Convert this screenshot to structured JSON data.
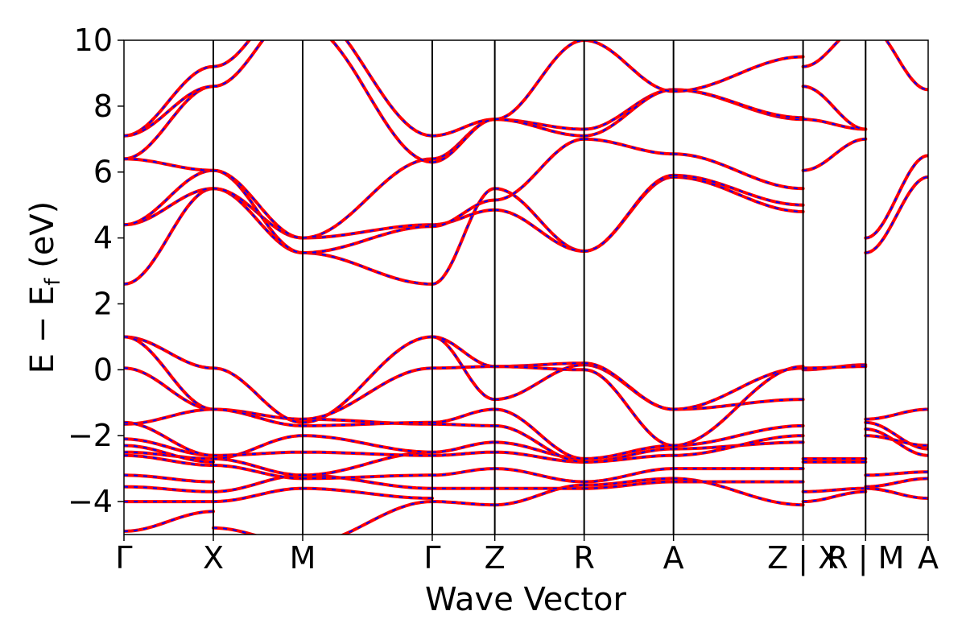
{
  "chart_data": {
    "type": "line",
    "title": "",
    "xlabel": "Wave Vector",
    "ylabel": "E − E",
    "ylabel_sub": "f",
    "ylabel_unit": " (eV)",
    "ylim": [
      -5,
      10
    ],
    "yticks": [
      {
        "value": 10,
        "label": "10"
      },
      {
        "value": 8,
        "label": "8"
      },
      {
        "value": 6,
        "label": "6"
      },
      {
        "value": 4,
        "label": "4"
      },
      {
        "value": 2,
        "label": "2"
      },
      {
        "value": 0,
        "label": "0"
      },
      {
        "value": -2,
        "label": "−2"
      },
      {
        "value": -4,
        "label": "−4"
      }
    ],
    "xlim": [
      0,
      9.0
    ],
    "kpoints": [
      {
        "x": 0.0,
        "label": "Γ"
      },
      {
        "x": 1.0,
        "label": "X"
      },
      {
        "x": 2.0,
        "label": "M"
      },
      {
        "x": 3.45,
        "label": "Γ"
      },
      {
        "x": 4.15,
        "label": "Z"
      },
      {
        "x": 5.15,
        "label": "R"
      },
      {
        "x": 6.15,
        "label": "A"
      },
      {
        "x": 7.6,
        "label": "Z | X"
      },
      {
        "x": 8.3,
        "label": "R | M"
      },
      {
        "x": 9.0,
        "label": "A"
      }
    ],
    "series": [
      {
        "color": "#ff0000",
        "style": "solid"
      },
      {
        "color": "#0000ff",
        "style": "dashed"
      }
    ],
    "segments": [
      {
        "x0": 0.0,
        "x1": 1.0,
        "bands": [
          [
            -4.9,
            -4.3
          ],
          [
            -4.0,
            -4.0
          ],
          [
            -3.55,
            -3.7
          ],
          [
            -3.2,
            -3.4
          ],
          [
            -2.6,
            -2.9
          ],
          [
            -2.5,
            -2.7
          ],
          [
            -2.3,
            -2.8
          ],
          [
            -2.1,
            -2.6
          ],
          [
            -1.65,
            -1.2
          ],
          [
            -1.6,
            -2.6
          ],
          [
            0.05,
            -1.2
          ],
          [
            1.0,
            0.05
          ],
          [
            1.0,
            -1.2
          ],
          [
            2.6,
            5.5
          ],
          [
            4.4,
            5.5
          ],
          [
            4.4,
            6.05
          ],
          [
            6.4,
            8.6
          ],
          [
            6.4,
            6.05
          ],
          [
            7.1,
            9.2
          ],
          [
            7.1,
            8.6
          ]
        ]
      },
      {
        "x0": 1.0,
        "x1": 2.0,
        "bands": [
          [
            -4.8,
            -5.3
          ],
          [
            -4.0,
            -3.6
          ],
          [
            -3.7,
            -3.2
          ],
          [
            -2.9,
            -3.3
          ],
          [
            -2.7,
            -3.2
          ],
          [
            -2.7,
            -2.0
          ],
          [
            -2.6,
            -2.5
          ],
          [
            -1.2,
            -1.5
          ],
          [
            -1.2,
            -1.7
          ],
          [
            0.05,
            -1.6
          ],
          [
            5.5,
            3.55
          ],
          [
            5.5,
            4.0
          ],
          [
            6.05,
            3.55
          ],
          [
            6.05,
            4.0
          ],
          [
            8.6,
            11.0
          ],
          [
            9.2,
            11.5
          ]
        ]
      },
      {
        "x0": 2.0,
        "x1": 3.45,
        "bands": [
          [
            -5.3,
            -4.0
          ],
          [
            -3.6,
            -3.9
          ],
          [
            -3.2,
            -3.6
          ],
          [
            -3.3,
            -3.2
          ],
          [
            -3.2,
            -2.5
          ],
          [
            -2.0,
            -2.5
          ],
          [
            -2.5,
            -2.6
          ],
          [
            -1.5,
            -1.65
          ],
          [
            -1.7,
            -1.6
          ],
          [
            -1.6,
            1.0
          ],
          [
            -1.5,
            0.05
          ],
          [
            3.55,
            2.6
          ],
          [
            4.0,
            4.4
          ],
          [
            3.55,
            4.35
          ],
          [
            4.0,
            6.4
          ],
          [
            10.5,
            6.3
          ],
          [
            11.0,
            7.1
          ]
        ]
      },
      {
        "x0": 3.45,
        "x1": 4.15,
        "bands": [
          [
            -4.0,
            -4.1
          ],
          [
            -3.6,
            -3.6
          ],
          [
            -3.2,
            -3.0
          ],
          [
            -2.6,
            -2.5
          ],
          [
            -2.5,
            -2.2
          ],
          [
            -1.65,
            -1.7
          ],
          [
            -1.6,
            -1.2
          ],
          [
            1.0,
            -0.9
          ],
          [
            1.0,
            0.1
          ],
          [
            0.05,
            0.1
          ],
          [
            2.6,
            5.5
          ],
          [
            4.4,
            4.85
          ],
          [
            4.35,
            5.15
          ],
          [
            6.4,
            7.6
          ],
          [
            7.1,
            7.6
          ],
          [
            6.3,
            7.6
          ]
        ]
      },
      {
        "x0": 4.15,
        "x1": 5.15,
        "bands": [
          [
            -4.1,
            -3.5
          ],
          [
            -3.6,
            -3.6
          ],
          [
            -3.0,
            -3.4
          ],
          [
            -2.5,
            -2.8
          ],
          [
            -2.2,
            -2.7
          ],
          [
            -1.7,
            -2.8
          ],
          [
            -1.2,
            -2.7
          ],
          [
            -0.9,
            0.15
          ],
          [
            0.1,
            0.2
          ],
          [
            0.1,
            0.0
          ],
          [
            5.5,
            3.6
          ],
          [
            4.85,
            3.6
          ],
          [
            5.15,
            7.0
          ],
          [
            7.6,
            7.3
          ],
          [
            7.6,
            7.1
          ],
          [
            7.6,
            10.0
          ]
        ]
      },
      {
        "x0": 5.15,
        "x1": 6.15,
        "bands": [
          [
            -3.5,
            -3.3
          ],
          [
            -3.6,
            -3.4
          ],
          [
            -3.4,
            -3.0
          ],
          [
            -2.8,
            -2.4
          ],
          [
            -2.7,
            -2.3
          ],
          [
            -2.8,
            -2.6
          ],
          [
            0.15,
            -1.2
          ],
          [
            0.2,
            -1.2
          ],
          [
            0.0,
            -2.3
          ],
          [
            3.6,
            5.85
          ],
          [
            3.6,
            5.9
          ],
          [
            7.0,
            6.55
          ],
          [
            7.3,
            8.5
          ],
          [
            7.1,
            8.5
          ],
          [
            10.0,
            8.45
          ]
        ]
      },
      {
        "x0": 6.15,
        "x1": 7.6,
        "bands": [
          [
            -3.3,
            -4.1
          ],
          [
            -3.4,
            -3.4
          ],
          [
            -3.0,
            -3.0
          ],
          [
            -2.4,
            -2.2
          ],
          [
            -2.3,
            -1.7
          ],
          [
            -2.6,
            -2.0
          ],
          [
            -1.2,
            -0.9
          ],
          [
            -1.2,
            0.05
          ],
          [
            -2.3,
            0.1
          ],
          [
            5.85,
            4.8
          ],
          [
            5.9,
            5.0
          ],
          [
            6.55,
            5.5
          ],
          [
            8.5,
            7.6
          ],
          [
            8.5,
            7.65
          ],
          [
            8.45,
            9.5
          ]
        ]
      },
      {
        "x0": 7.6,
        "x1": 8.3,
        "bands": [
          [
            -4.0,
            -3.7
          ],
          [
            -3.7,
            -3.6
          ],
          [
            -2.7,
            -2.7
          ],
          [
            -2.8,
            -2.8
          ],
          [
            0.0,
            0.15
          ],
          [
            0.05,
            0.1
          ],
          [
            6.05,
            7.0
          ],
          [
            7.6,
            7.3
          ],
          [
            8.6,
            7.3
          ],
          [
            9.2,
            10.5
          ]
        ]
      },
      {
        "x0": 8.3,
        "x1": 9.0,
        "bands": [
          [
            -3.2,
            -3.1
          ],
          [
            -3.55,
            -3.3
          ],
          [
            -3.6,
            -3.9
          ],
          [
            -1.5,
            -1.2
          ],
          [
            -1.6,
            -2.4
          ],
          [
            -1.8,
            -2.6
          ],
          [
            -2.0,
            -2.3
          ],
          [
            4.0,
            6.5
          ],
          [
            3.55,
            5.85
          ],
          [
            10.5,
            8.5
          ]
        ]
      }
    ]
  }
}
